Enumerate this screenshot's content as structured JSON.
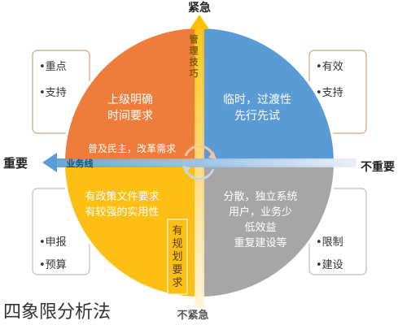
{
  "axes": {
    "top": "紧急",
    "bottom": "不紧急",
    "left": "重要",
    "right": "不重要",
    "vertical_axis_text": "管理技巧",
    "horizontal_axis_text": "业务线"
  },
  "quadrants": {
    "top_left": {
      "lines": [
        "上级明确",
        "时间要求"
      ],
      "color": "#ee7c3b"
    },
    "top_right": {
      "lines": [
        "临时，过渡性",
        "先行先试"
      ],
      "color": "#5b9bd5"
    },
    "bottom_left": {
      "lines": [
        "有政策文件要求",
        "有较强的实用性"
      ],
      "color": "#fdbf13"
    },
    "bottom_right": {
      "lines": [
        "分散，独立系统",
        "用户，业务少",
        "低效益",
        "重复建设等"
      ],
      "color": "#a6a6a6"
    }
  },
  "spokes": {
    "left_arrow_text": "普及民主，改革需求",
    "down_strip_text": "有规划要求"
  },
  "side_boxes": {
    "top_left": [
      "重点",
      "支持"
    ],
    "top_right": [
      "有效",
      "支持"
    ],
    "bottom_left": [
      "申报",
      "预算"
    ],
    "bottom_right": [
      "限制",
      "建设"
    ]
  },
  "caption": "四象限分析法"
}
